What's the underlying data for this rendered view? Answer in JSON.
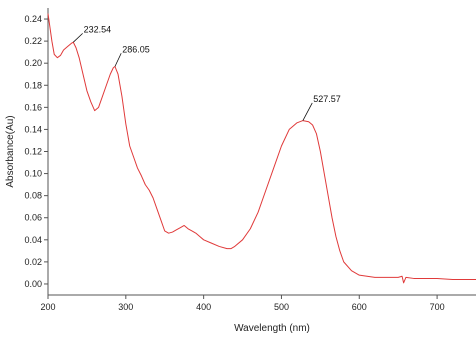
{
  "chart_data": {
    "type": "line",
    "title": "",
    "xlabel": "Wavelength (nm)",
    "ylabel": "Absorbance(Au)",
    "xlim": [
      200,
      750
    ],
    "ylim": [
      -0.01,
      0.25
    ],
    "grid": false,
    "legend": "none",
    "line_color": "#e03a3a",
    "x_ticks": [
      200,
      300,
      400,
      500,
      600,
      700
    ],
    "x_tick_labels": [
      "200",
      "300",
      "400",
      "500",
      "600",
      "700"
    ],
    "y_ticks": [
      0.0,
      0.02,
      0.04,
      0.06,
      0.08,
      0.1,
      0.12,
      0.14,
      0.16,
      0.18,
      0.2,
      0.22,
      0.24
    ],
    "y_tick_labels": [
      "0.00",
      "0.02",
      "0.04",
      "0.06",
      "0.08",
      "0.10",
      "0.12",
      "0.14",
      "0.16",
      "0.18",
      "0.20",
      "0.22",
      "0.24"
    ],
    "series": [
      {
        "x": [
          200,
          202,
          205,
          208,
          212,
          216,
          220,
          225,
          230,
          232.54,
          236,
          240,
          245,
          250,
          255,
          260,
          265,
          270,
          275,
          280,
          284,
          286.05,
          290,
          295,
          300,
          305,
          310,
          315,
          320,
          325,
          330,
          335,
          340,
          345,
          350,
          355,
          360,
          365,
          370,
          375,
          380,
          385,
          390,
          395,
          400,
          410,
          420,
          430,
          435,
          440,
          450,
          460,
          470,
          480,
          490,
          500,
          510,
          520,
          527.57,
          535,
          540,
          545,
          550,
          555,
          560,
          565,
          570,
          575,
          580,
          590,
          600,
          610,
          620,
          630,
          640,
          650,
          655,
          657,
          660,
          670,
          680,
          700,
          720,
          740,
          750
        ],
        "y": [
          0.245,
          0.235,
          0.22,
          0.208,
          0.205,
          0.207,
          0.212,
          0.215,
          0.218,
          0.219,
          0.214,
          0.205,
          0.19,
          0.175,
          0.165,
          0.157,
          0.16,
          0.17,
          0.18,
          0.19,
          0.196,
          0.197,
          0.19,
          0.17,
          0.145,
          0.125,
          0.115,
          0.105,
          0.098,
          0.09,
          0.085,
          0.078,
          0.068,
          0.058,
          0.048,
          0.046,
          0.047,
          0.049,
          0.051,
          0.053,
          0.05,
          0.048,
          0.046,
          0.043,
          0.04,
          0.037,
          0.034,
          0.032,
          0.032,
          0.034,
          0.04,
          0.05,
          0.065,
          0.085,
          0.105,
          0.125,
          0.14,
          0.146,
          0.148,
          0.147,
          0.144,
          0.136,
          0.12,
          0.1,
          0.08,
          0.06,
          0.043,
          0.03,
          0.02,
          0.012,
          0.008,
          0.007,
          0.006,
          0.006,
          0.006,
          0.006,
          0.007,
          0.001,
          0.006,
          0.005,
          0.005,
          0.005,
          0.004,
          0.004,
          0.004
        ]
      }
    ],
    "annotations": [
      {
        "label": "232.54",
        "x": 232.54,
        "y": 0.219,
        "dx_data": 12,
        "dy_data": 0.008
      },
      {
        "label": "286.05",
        "x": 286.05,
        "y": 0.197,
        "dx_data": 8,
        "dy_data": 0.012
      },
      {
        "label": "527.57",
        "x": 527.57,
        "y": 0.148,
        "dx_data": 12,
        "dy_data": 0.016
      }
    ]
  }
}
